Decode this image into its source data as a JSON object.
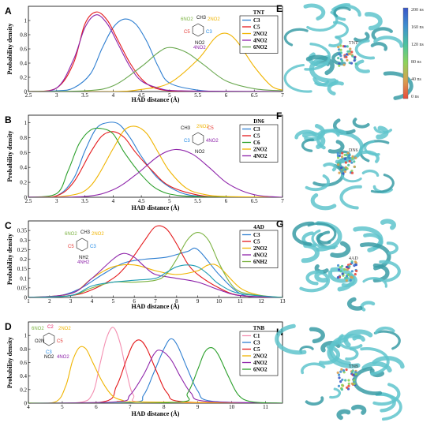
{
  "figure": {
    "right_labels": [
      "E",
      "F",
      "G",
      "H"
    ],
    "colorbar": {
      "ticks": [
        "200 ns",
        "160 ns",
        "120 ns",
        "80 ns",
        "40 ns",
        "0 ns"
      ],
      "colors": [
        "#3a56c8",
        "#3f8fcf",
        "#4bc2a0",
        "#8cd35a",
        "#d9a050",
        "#e84a3c"
      ]
    },
    "protein_labels": [
      "TNT",
      "DN6",
      "4AD",
      "TNB"
    ]
  },
  "chart_data": [
    {
      "panel": "A",
      "type": "line",
      "xlabel": "HAD distance (Å)",
      "ylabel": "Probability density",
      "xlim": [
        2.5,
        7
      ],
      "ylim": [
        0,
        1.2
      ],
      "xticks": [
        "2.5",
        "3",
        "3.5",
        "4",
        "4.5",
        "5",
        "5.5",
        "6",
        "6.5",
        "7"
      ],
      "yticks": [
        "0",
        "0.2",
        "0.4",
        "0.6",
        "0.8",
        "1"
      ],
      "legend_title": "TNT",
      "legend_position": "top-right",
      "molecule": {
        "labels": [
          {
            "text": "6NO2",
            "color": "#7cb342"
          },
          {
            "text": "CH3",
            "color": "#111"
          },
          {
            "text": "2NO2",
            "color": "#f0b400"
          },
          {
            "text": "C5",
            "color": "#e53935"
          },
          {
            "text": "C3",
            "color": "#1e88e5"
          },
          {
            "text": "NO2",
            "color": "#111"
          },
          {
            "text": "4NO2",
            "color": "#8e24aa"
          }
        ]
      },
      "series": [
        {
          "name": "C3",
          "color": "#2f7fd1",
          "x": [
            2.5,
            3,
            3.3,
            3.6,
            3.8,
            4,
            4.2,
            4.4,
            4.6,
            4.8,
            5,
            5.5,
            6,
            7
          ],
          "y": [
            0,
            0.01,
            0.05,
            0.25,
            0.6,
            0.9,
            1.02,
            0.95,
            0.7,
            0.35,
            0.12,
            0.02,
            0,
            0
          ]
        },
        {
          "name": "C5",
          "color": "#e41a1c",
          "x": [
            2.5,
            3,
            3.3,
            3.5,
            3.7,
            3.9,
            4.1,
            4.3,
            4.5,
            4.7,
            5,
            5.5,
            7
          ],
          "y": [
            0,
            0.05,
            0.4,
            0.95,
            1.12,
            1.0,
            0.7,
            0.4,
            0.18,
            0.06,
            0.01,
            0,
            0
          ]
        },
        {
          "name": "2NO2",
          "color": "#f0b400",
          "x": [
            2.5,
            4,
            4.5,
            5,
            5.5,
            5.8,
            6,
            6.2,
            6.5,
            6.8,
            7
          ],
          "y": [
            0,
            0,
            0.03,
            0.12,
            0.45,
            0.75,
            0.82,
            0.7,
            0.35,
            0.08,
            0.02
          ]
        },
        {
          "name": "4NO2",
          "color": "#8e24aa",
          "x": [
            2.5,
            3,
            3.3,
            3.5,
            3.7,
            3.9,
            4.1,
            4.3,
            4.5,
            4.8,
            5.2,
            7
          ],
          "y": [
            0,
            0.05,
            0.45,
            0.9,
            1.08,
            0.95,
            0.65,
            0.35,
            0.15,
            0.05,
            0.01,
            0
          ]
        },
        {
          "name": "6NO2",
          "color": "#6aa84f",
          "x": [
            2.5,
            3.5,
            4,
            4.5,
            4.8,
            5,
            5.3,
            5.6,
            6,
            6.5,
            7
          ],
          "y": [
            0,
            0.01,
            0.08,
            0.35,
            0.55,
            0.62,
            0.55,
            0.38,
            0.15,
            0.04,
            0.01
          ]
        }
      ]
    },
    {
      "panel": "B",
      "type": "line",
      "xlabel": "HAD distance (Å)",
      "ylabel": "Probability density",
      "xlim": [
        2.5,
        7
      ],
      "ylim": [
        0,
        1.1
      ],
      "xticks": [
        "2.5",
        "3",
        "3.5",
        "4",
        "4.5",
        "5",
        "5.5",
        "6",
        "6.5",
        "7"
      ],
      "yticks": [
        "0",
        "0.2",
        "0.4",
        "0.6",
        "0.8",
        "1"
      ],
      "legend_title": "DN6",
      "legend_position": "top-right",
      "molecule": {
        "labels": [
          {
            "text": "CH3",
            "color": "#111"
          },
          {
            "text": "2NO2",
            "color": "#f0b400"
          },
          {
            "text": "C5",
            "color": "#e53935"
          },
          {
            "text": "C3",
            "color": "#1e88e5"
          },
          {
            "text": "4NO2",
            "color": "#8e24aa"
          },
          {
            "text": "NO2",
            "color": "#111"
          }
        ]
      },
      "series": [
        {
          "name": "C3",
          "color": "#2f7fd1",
          "x": [
            2.5,
            3,
            3.3,
            3.5,
            3.7,
            3.9,
            4.1,
            4.3,
            4.5,
            4.8,
            5.2,
            5.6,
            6,
            7
          ],
          "y": [
            0,
            0.02,
            0.25,
            0.62,
            0.92,
            1.0,
            0.98,
            0.8,
            0.55,
            0.25,
            0.06,
            0.01,
            0,
            0
          ]
        },
        {
          "name": "C5",
          "color": "#e41a1c",
          "x": [
            2.5,
            3,
            3.3,
            3.6,
            3.8,
            4,
            4.2,
            4.4,
            4.7,
            5,
            5.5,
            6,
            7
          ],
          "y": [
            0,
            0.02,
            0.2,
            0.6,
            0.82,
            0.88,
            0.8,
            0.6,
            0.35,
            0.15,
            0.03,
            0,
            0
          ]
        },
        {
          "name": "C6",
          "color": "#2ca02c",
          "x": [
            2.5,
            3,
            3.2,
            3.4,
            3.6,
            3.8,
            4,
            4.2,
            4.5,
            4.8,
            5.2,
            6,
            7
          ],
          "y": [
            0,
            0.05,
            0.35,
            0.72,
            0.9,
            0.92,
            0.85,
            0.6,
            0.3,
            0.1,
            0.02,
            0,
            0
          ]
        },
        {
          "name": "2NO2",
          "color": "#f0b400",
          "x": [
            2.5,
            3.2,
            3.6,
            4,
            4.2,
            4.4,
            4.6,
            4.8,
            5,
            5.3,
            5.6,
            6,
            7
          ],
          "y": [
            0,
            0.02,
            0.15,
            0.65,
            0.9,
            0.95,
            0.85,
            0.6,
            0.35,
            0.12,
            0.04,
            0.01,
            0
          ]
        },
        {
          "name": "4NO2",
          "color": "#8e24aa",
          "x": [
            2.5,
            3.5,
            4,
            4.4,
            4.8,
            5.1,
            5.4,
            5.7,
            6,
            6.3,
            6.6,
            7
          ],
          "y": [
            0,
            0.01,
            0.1,
            0.3,
            0.55,
            0.64,
            0.58,
            0.4,
            0.2,
            0.08,
            0.02,
            0
          ]
        }
      ]
    },
    {
      "panel": "C",
      "type": "line",
      "xlabel": "HAD distance (Å)",
      "ylabel": "Probability density",
      "xlim": [
        1,
        13
      ],
      "ylim": [
        0,
        0.4
      ],
      "xticks": [
        "1",
        "2",
        "3",
        "4",
        "5",
        "6",
        "7",
        "8",
        "9",
        "10",
        "11",
        "12",
        "13"
      ],
      "yticks": [
        "0",
        "0.05",
        "0.1",
        "0.15",
        "0.2",
        "0.25",
        "0.3",
        "0.35"
      ],
      "legend_title": "4AD",
      "legend_position": "top-right",
      "molecule": {
        "labels": [
          {
            "text": "6NO2",
            "color": "#7cb342"
          },
          {
            "text": "CH3",
            "color": "#111"
          },
          {
            "text": "2NO2",
            "color": "#f0b400"
          },
          {
            "text": "C5",
            "color": "#e53935"
          },
          {
            "text": "C3",
            "color": "#1e88e5"
          },
          {
            "text": "NH2",
            "color": "#111"
          },
          {
            "text": "4NH2",
            "color": "#8e24aa"
          }
        ]
      },
      "series": [
        {
          "name": "C3",
          "color": "#2f7fd1",
          "x": [
            1,
            2.5,
            3.5,
            4.5,
            5.5,
            6.5,
            7.5,
            8.5,
            9,
            10,
            11,
            12,
            13
          ],
          "y": [
            0,
            0.01,
            0.05,
            0.12,
            0.18,
            0.2,
            0.21,
            0.24,
            0.25,
            0.12,
            0.02,
            0,
            0
          ]
        },
        {
          "name": "C5",
          "color": "#e41a1c",
          "x": [
            1,
            3,
            4,
            5,
            5.5,
            6,
            6.5,
            7,
            7.5,
            8,
            8.5,
            9,
            10,
            11,
            13
          ],
          "y": [
            0,
            0.01,
            0.04,
            0.1,
            0.15,
            0.22,
            0.3,
            0.37,
            0.36,
            0.28,
            0.18,
            0.12,
            0.05,
            0.01,
            0
          ]
        },
        {
          "name": "2NO2",
          "color": "#f0b400",
          "x": [
            1,
            3,
            4,
            5,
            6,
            7,
            8,
            9,
            9.5,
            10,
            11,
            12,
            13
          ],
          "y": [
            0,
            0.02,
            0.1,
            0.16,
            0.17,
            0.14,
            0.12,
            0.14,
            0.17,
            0.16,
            0.05,
            0.01,
            0
          ]
        },
        {
          "name": "4NO2",
          "color": "#8e24aa",
          "x": [
            1,
            3,
            4,
            5,
            5.5,
            6,
            6.5,
            7,
            8,
            9,
            10,
            11,
            13
          ],
          "y": [
            0,
            0.02,
            0.1,
            0.2,
            0.23,
            0.21,
            0.16,
            0.12,
            0.1,
            0.08,
            0.04,
            0.01,
            0
          ]
        },
        {
          "name": "6NH2",
          "color": "#7cb342",
          "x": [
            1,
            3,
            4,
            5,
            6,
            7,
            7.5,
            8,
            8.5,
            9,
            9.5,
            10,
            10.5,
            11,
            12,
            13
          ],
          "y": [
            0,
            0.01,
            0.05,
            0.08,
            0.08,
            0.09,
            0.12,
            0.2,
            0.3,
            0.34,
            0.3,
            0.18,
            0.08,
            0.03,
            0.01,
            0
          ]
        },
        {
          "name": "",
          "color": "#1f9cb5",
          "x": [
            1,
            3,
            4,
            5,
            6,
            7,
            7.5,
            8,
            8.5,
            9,
            9.5,
            10,
            11,
            13
          ],
          "y": [
            0,
            0.01,
            0.06,
            0.08,
            0.09,
            0.1,
            0.13,
            0.16,
            0.17,
            0.16,
            0.12,
            0.07,
            0.02,
            0
          ]
        }
      ]
    },
    {
      "panel": "D",
      "type": "line",
      "xlabel": "HAD distance (Å)",
      "ylabel": "Probability density",
      "xlim": [
        4,
        11.5
      ],
      "ylim": [
        0,
        1.2
      ],
      "xticks": [
        "4",
        "5",
        "6",
        "7",
        "8",
        "9",
        "10",
        "11"
      ],
      "yticks": [
        "0",
        "0.2",
        "0.4",
        "0.6",
        "0.8",
        "1"
      ],
      "legend_title": "TNB",
      "legend_position": "top-right",
      "molecule": {
        "labels": [
          {
            "text": "6NO2",
            "color": "#7cb342"
          },
          {
            "text": "C2",
            "color": "#e91e63"
          },
          {
            "text": "2NO2",
            "color": "#f0b400"
          },
          {
            "text": "O2N",
            "color": "#111"
          },
          {
            "text": "C5",
            "color": "#e53935"
          },
          {
            "text": "C3",
            "color": "#1e88e5"
          },
          {
            "text": "NO2",
            "color": "#111"
          },
          {
            "text": "4NO2",
            "color": "#8e24aa"
          }
        ]
      },
      "series": [
        {
          "name": "C1",
          "color": "#f48fb1",
          "x": [
            4,
            5.5,
            5.9,
            6.1,
            6.3,
            6.5,
            6.7,
            6.9,
            7.1,
            7.5,
            11.5
          ],
          "y": [
            0,
            0.01,
            0.15,
            0.55,
            0.95,
            1.12,
            0.9,
            0.45,
            0.12,
            0.01,
            0
          ]
        },
        {
          "name": "C3",
          "color": "#2f7fd1",
          "x": [
            4,
            7,
            7.4,
            7.7,
            8,
            8.2,
            8.4,
            8.7,
            9,
            9.4,
            11.5
          ],
          "y": [
            0,
            0.01,
            0.12,
            0.45,
            0.8,
            0.95,
            0.85,
            0.5,
            0.18,
            0.03,
            0
          ]
        },
        {
          "name": "C5",
          "color": "#e41a1c",
          "x": [
            4,
            6.2,
            6.6,
            6.9,
            7.1,
            7.3,
            7.5,
            7.8,
            8.1,
            8.6,
            11.5
          ],
          "y": [
            0,
            0.02,
            0.25,
            0.65,
            0.88,
            0.93,
            0.8,
            0.45,
            0.15,
            0.02,
            0
          ]
        },
        {
          "name": "2NO2",
          "color": "#f0b400",
          "x": [
            4,
            4.8,
            5.1,
            5.3,
            5.5,
            5.7,
            5.9,
            6.2,
            6.5,
            6.8,
            7,
            11.5
          ],
          "y": [
            0,
            0.02,
            0.25,
            0.62,
            0.82,
            0.8,
            0.6,
            0.3,
            0.1,
            0.04,
            0.02,
            0
          ]
        },
        {
          "name": "4NO2",
          "color": "#8e24aa",
          "x": [
            4,
            6.6,
            7,
            7.4,
            7.7,
            7.9,
            8.2,
            8.5,
            8.8,
            9.2,
            11.5
          ],
          "y": [
            0,
            0.02,
            0.12,
            0.42,
            0.72,
            0.78,
            0.65,
            0.38,
            0.15,
            0.03,
            0
          ]
        },
        {
          "name": "6NO2",
          "color": "#2ca02c",
          "x": [
            4,
            8.3,
            8.7,
            9,
            9.2,
            9.4,
            9.6,
            9.9,
            10.2,
            10.6,
            11.5
          ],
          "y": [
            0,
            0.01,
            0.15,
            0.5,
            0.75,
            0.82,
            0.72,
            0.4,
            0.12,
            0.02,
            0
          ]
        }
      ]
    }
  ]
}
